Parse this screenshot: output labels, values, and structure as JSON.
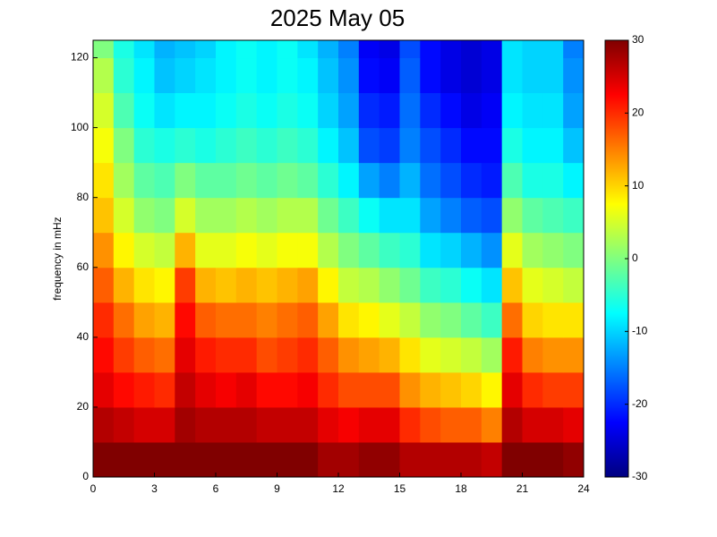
{
  "chart_data": {
    "type": "heatmap",
    "title": "2025 May 05",
    "y_label": "frequency in mHz",
    "x_bins": [
      0,
      1,
      2,
      3,
      4,
      5,
      6,
      7,
      8,
      9,
      10,
      11,
      12,
      13,
      14,
      15,
      16,
      17,
      18,
      19,
      20,
      21,
      22,
      23,
      24
    ],
    "y_bins": [
      0,
      10,
      20,
      30,
      40,
      50,
      60,
      70,
      80,
      90,
      100,
      110,
      120,
      125
    ],
    "z": [
      [
        30,
        30,
        30,
        30,
        30,
        30,
        30,
        30,
        30,
        30,
        30,
        28,
        28,
        29,
        29,
        27,
        27,
        27,
        27,
        26,
        30,
        30,
        30,
        29
      ],
      [
        27,
        26,
        25,
        25,
        28,
        27,
        27,
        27,
        26,
        26,
        26,
        24,
        23,
        24,
        24,
        20,
        18,
        17,
        17,
        15,
        27,
        25,
        25,
        24
      ],
      [
        24,
        22,
        21,
        20,
        26,
        24,
        23,
        24,
        22,
        22,
        23,
        20,
        18,
        18,
        18,
        14,
        12,
        11,
        10,
        8,
        24,
        20,
        19,
        19
      ],
      [
        22,
        19,
        17,
        16,
        24,
        21,
        20,
        20,
        18,
        19,
        20,
        17,
        14,
        13,
        12,
        9,
        6,
        5,
        4,
        2,
        21,
        15,
        14,
        14
      ],
      [
        20,
        16,
        13,
        12,
        22,
        17,
        16,
        16,
        15,
        16,
        17,
        13,
        9,
        8,
        6,
        4,
        1,
        0,
        -2,
        -4,
        16,
        10,
        9,
        9
      ],
      [
        17,
        12,
        9,
        8,
        19,
        12,
        11,
        12,
        11,
        12,
        13,
        8,
        4,
        3,
        1,
        -1,
        -4,
        -5,
        -7,
        -9,
        11,
        6,
        5,
        4
      ],
      [
        14,
        8,
        5,
        4,
        12,
        6,
        6,
        7,
        6,
        7,
        7,
        3,
        0,
        -2,
        -4,
        -5,
        -9,
        -10,
        -12,
        -14,
        6,
        2,
        1,
        0
      ],
      [
        11,
        5,
        1,
        0,
        5,
        2,
        2,
        3,
        2,
        3,
        3,
        -1,
        -4,
        -7,
        -9,
        -9,
        -13,
        -15,
        -17,
        -18,
        1,
        -2,
        -3,
        -4
      ],
      [
        9,
        2,
        -2,
        -3,
        0,
        -2,
        -2,
        -1,
        -2,
        -1,
        -2,
        -5,
        -8,
        -13,
        -15,
        -12,
        -16,
        -18,
        -20,
        -21,
        -3,
        -6,
        -6,
        -8
      ],
      [
        7,
        0,
        -5,
        -6,
        -5,
        -6,
        -5,
        -4,
        -5,
        -4,
        -5,
        -8,
        -11,
        -18,
        -19,
        -15,
        -18,
        -20,
        -22,
        -22,
        -6,
        -8,
        -8,
        -11
      ],
      [
        5,
        -3,
        -7,
        -9,
        -8,
        -8,
        -7,
        -6,
        -7,
        -6,
        -7,
        -10,
        -13,
        -20,
        -21,
        -16,
        -20,
        -22,
        -24,
        -23,
        -8,
        -9,
        -9,
        -13
      ],
      [
        3,
        -5,
        -8,
        -11,
        -10,
        -9,
        -8,
        -7,
        -8,
        -7,
        -8,
        -11,
        -14,
        -22,
        -23,
        -17,
        -22,
        -24,
        -25,
        -24,
        -9,
        -10,
        -10,
        -14
      ],
      [
        0,
        -6,
        -9,
        -12,
        -11,
        -10,
        -8,
        -7,
        -8,
        -7,
        -9,
        -12,
        -15,
        -23,
        -24,
        -18,
        -22,
        -24,
        -25,
        -24,
        -9,
        -10,
        -10,
        -15
      ]
    ],
    "xlim": [
      0,
      24
    ],
    "xticks": [
      0,
      3,
      6,
      9,
      12,
      15,
      18,
      21,
      24
    ],
    "ylim": [
      0,
      125
    ],
    "yticks": [
      0,
      20,
      40,
      60,
      80,
      100,
      120
    ],
    "clim": [
      -30,
      30
    ],
    "cticks": [
      -30,
      -20,
      -10,
      0,
      10,
      20,
      30
    ],
    "colormap": "jet"
  }
}
